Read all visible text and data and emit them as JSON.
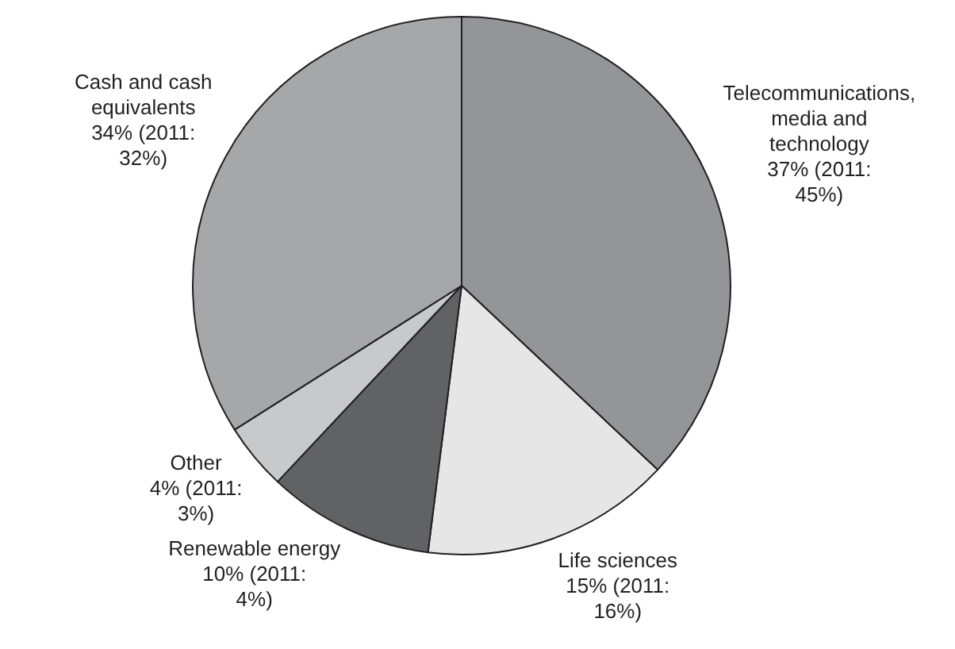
{
  "chart_data": {
    "type": "pie",
    "categories": [
      "Telecommunications, media and technology",
      "Life sciences",
      "Renewable energy",
      "Other",
      "Cash and cash equivalents"
    ],
    "values": [
      37,
      15,
      10,
      4,
      34
    ],
    "value_labels": [
      "37% (2011: 45%)",
      "15% (2011: 16%)",
      "10% (2011: 4%)",
      "4% (2011: 3%)",
      "34% (2011: 32%)"
    ],
    "colors": [
      "#939598",
      "#e6e6e7",
      "#616264",
      "#c8c9cb",
      "#a6a7a9"
    ],
    "legend": false
  }
}
